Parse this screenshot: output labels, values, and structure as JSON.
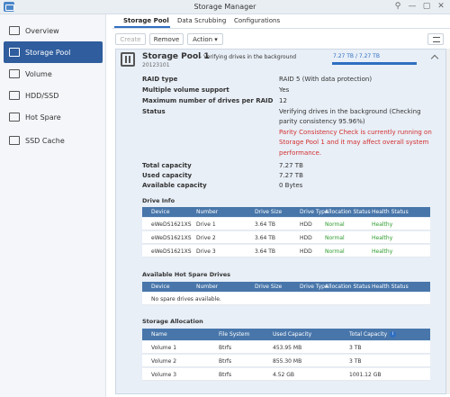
{
  "window": {
    "title": "Storage Manager",
    "controls": [
      "⚲",
      "—",
      "▢",
      "✕"
    ]
  },
  "sidebar": {
    "items": [
      {
        "label": "Overview",
        "icon": "overview-icon"
      },
      {
        "label": "Storage Pool",
        "icon": "storage-pool-icon",
        "active": true
      },
      {
        "label": "Volume",
        "icon": "volume-icon"
      },
      {
        "label": "HDD/SSD",
        "icon": "hdd-icon"
      },
      {
        "label": "Hot Spare",
        "icon": "hot-spare-icon"
      },
      {
        "label": "SSD Cache",
        "icon": "ssd-cache-icon"
      }
    ]
  },
  "tabs": [
    {
      "label": "Storage Pool"
    },
    {
      "label": "Data Scrubbing"
    },
    {
      "label": "Configurations"
    }
  ],
  "toolbar": {
    "create": "Create",
    "remove": "Remove",
    "action": "Action ▾"
  },
  "pool": {
    "name": "Storage Pool 1",
    "status": "- Verifying drives in the background",
    "id": "20123101",
    "capacity_text": "7.27 TB / 7.27 TB",
    "used_fraction": 1.0,
    "props": [
      {
        "k": "RAID type",
        "v": "RAID 5 (With data protection)"
      },
      {
        "k": "Multiple volume support",
        "v": "Yes"
      },
      {
        "k": "Maximum number of drives per RAID",
        "v": "12"
      },
      {
        "k": "Status",
        "v": "Verifying drives in the background (Checking"
      }
    ],
    "status_line2": "parity consistency 95.96%)",
    "warning_lines": [
      "Parity Consistency Check is currently running on",
      "Storage Pool 1 and it may affect overall system",
      "performance."
    ],
    "totals": [
      {
        "k": "Total capacity",
        "v": "7.27 TB"
      },
      {
        "k": "Used capacity",
        "v": "7.27 TB"
      },
      {
        "k": "Available capacity",
        "v": "0 Bytes"
      }
    ]
  },
  "drive_info": {
    "title": "Drive Info",
    "headers": [
      "Device",
      "Number",
      "Drive Size",
      "Drive Type",
      "Allocation Status",
      "Health Status"
    ],
    "rows": [
      [
        "eWeDS1621XS",
        "Drive 1",
        "3.64 TB",
        "HDD",
        "Normal",
        "Healthy"
      ],
      [
        "eWeDS1621XS",
        "Drive 2",
        "3.64 TB",
        "HDD",
        "Normal",
        "Healthy"
      ],
      [
        "eWeDS1621XS",
        "Drive 3",
        "3.64 TB",
        "HDD",
        "Normal",
        "Healthy"
      ]
    ]
  },
  "hot_spare": {
    "title": "Available Hot Spare Drives",
    "headers": [
      "Device",
      "Number",
      "Drive Size",
      "Drive Type",
      "Allocation Status",
      "Health Status"
    ],
    "empty": "No spare drives available."
  },
  "allocation": {
    "title": "Storage Allocation",
    "headers": [
      "Name",
      "File System",
      "Used Capacity",
      "Total Capacity"
    ],
    "rows": [
      [
        "Volume 1",
        "Btrfs",
        "453.95 MB",
        "3 TB"
      ],
      [
        "Volume 2",
        "Btrfs",
        "855.30 MB",
        "3 TB"
      ],
      [
        "Volume 3",
        "Btrfs",
        "4.52 GB",
        "1001.12 GB"
      ]
    ]
  }
}
